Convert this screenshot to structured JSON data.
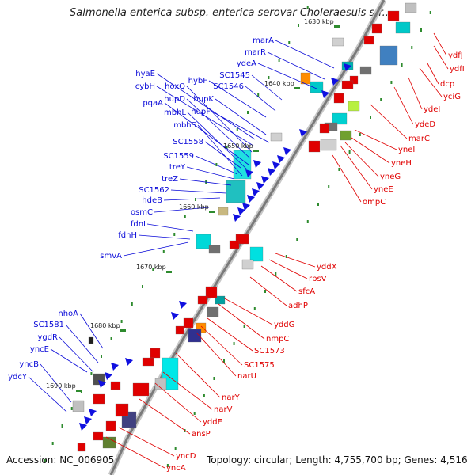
{
  "title": "Salmonella enterica subsp. enterica serovar Choleraesuis str...",
  "footer": {
    "accession": "Accession: NC_006905",
    "topology": "Topology: circular; Length: 4,755,700 bp; Genes: 4,516"
  },
  "colors": {
    "backbone": "#7a7a7a",
    "forward_labels": "#0a0ad8",
    "reverse_labels": "#e00000",
    "tick_marks": "#2e8b2e"
  },
  "kbp_markers": [
    "1630 kbp",
    "1640 kbp",
    "1650 kbp",
    "1660 kbp",
    "1670 kbp",
    "1680 kbp",
    "1690 kbp"
  ],
  "forward_genes": [
    "marA",
    "marR",
    "ydeA",
    "SC1545",
    "hybF",
    "SC1546",
    "hyaE",
    "cybH",
    "hoxQ",
    "hupD",
    "pqaA",
    "hupK",
    "mbhL",
    "hupF",
    "mbhS",
    "SC1558",
    "SC1559",
    "treY",
    "treZ",
    "SC1562",
    "hdeB",
    "osmC",
    "fdnI",
    "fdnH",
    "smvA",
    "nhoA",
    "SC1581",
    "ygdR",
    "yncE",
    "yncB",
    "ydcY"
  ],
  "reverse_genes": [
    "ydfJ",
    "ydfI",
    "dcp",
    "yciG",
    "ydeI",
    "ydeD",
    "marC",
    "yneI",
    "yneH",
    "yneG",
    "yneE",
    "ompC",
    "yddX",
    "rpsV",
    "sfcA",
    "adhP",
    "yddG",
    "nmpC",
    "SC1573",
    "SC1575",
    "narU",
    "narY",
    "narV",
    "yddE",
    "ansP",
    "yncD",
    "yncA"
  ]
}
